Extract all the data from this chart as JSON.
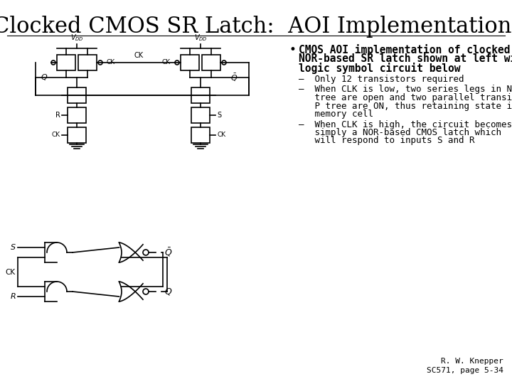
{
  "title": "Clocked CMOS SR Latch:  AOI Implementation",
  "title_fontsize": 22,
  "bg_color": "#ffffff",
  "bullet_dot": "•",
  "bullet_header_lines": [
    "CMOS AOI implementation of clocked",
    "NOR-based SR latch shown at left with",
    "logic symbol circuit below"
  ],
  "sub_bullets": [
    [
      "–  Only 12 transistors required"
    ],
    [
      "–  When CLK is low, two series legs in N",
      "   tree are open and two parallel transistors in",
      "   P tree are ON, thus retaining state in the",
      "   memory cell"
    ],
    [
      "–  When CLK is high, the circuit becomes",
      "   simply a NOR-based CMOS latch which",
      "   will respond to inputs S and R"
    ]
  ],
  "attribution": "R. W. Knepper\nSC571, page 5-34",
  "attribution_fontsize": 8,
  "bullet_header_fontsize": 10.5,
  "sub_bullet_fontsize": 9
}
